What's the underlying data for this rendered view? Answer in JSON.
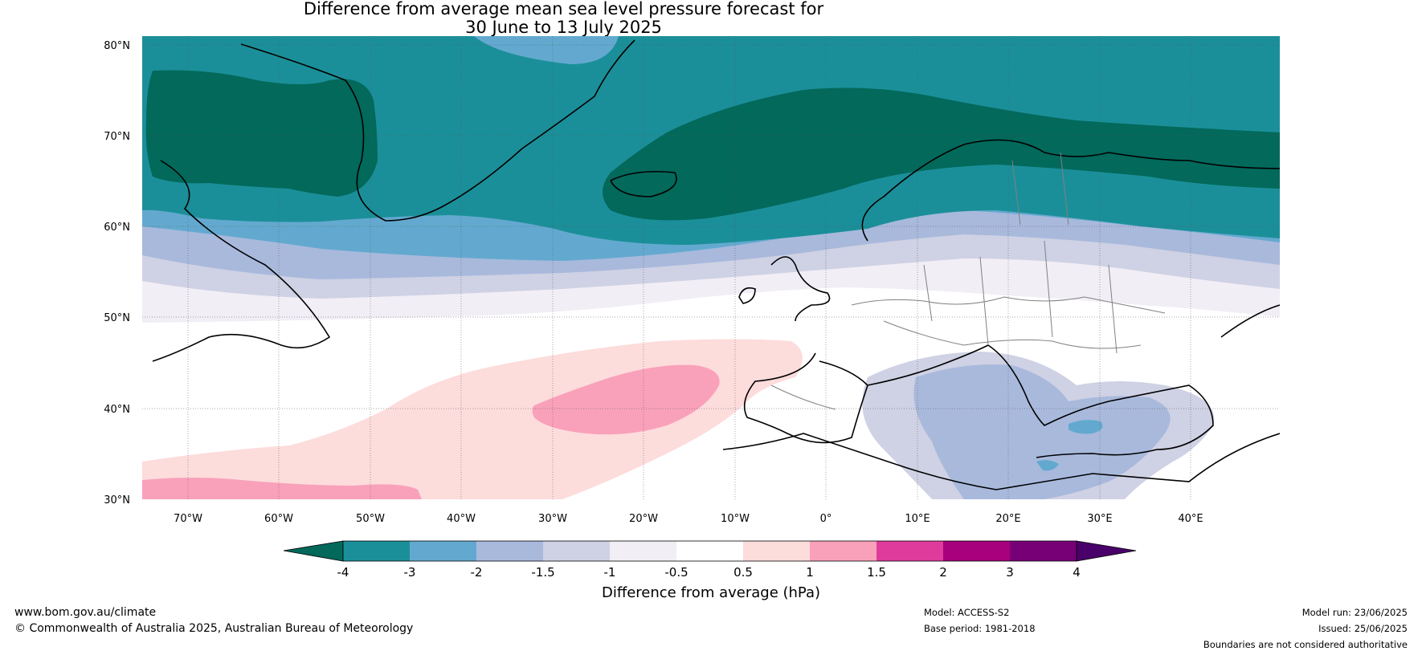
{
  "title": {
    "line1": "Difference from average mean sea level pressure forecast for",
    "line2": "30 June to 13 July 2025"
  },
  "map": {
    "lat_labels": [
      "80°N",
      "70°N",
      "60°N",
      "50°N",
      "40°N",
      "30°N"
    ],
    "lon_labels": [
      "70°W",
      "60°W",
      "50°W",
      "40°W",
      "30°W",
      "20°W",
      "10°W",
      "0°",
      "10°E",
      "20°E",
      "30°E",
      "40°E"
    ]
  },
  "colorbar": {
    "label": "Difference from average (hPa)",
    "tick_labels": [
      "-4",
      "-3",
      "-2",
      "-1.5",
      "-1",
      "-0.5",
      "0.5",
      "1",
      "1.5",
      "2",
      "3",
      "4"
    ],
    "colors": [
      "#02695b",
      "#1b8f99",
      "#63a9cf",
      "#a8b9dc",
      "#cfd1e4",
      "#f2eef6",
      "#ffffff",
      "#fddcdc",
      "#f9a1ba",
      "#df3b9c",
      "#a7017d",
      "#780077",
      "#4a006a"
    ]
  },
  "footer": {
    "website": "www.bom.gov.au/climate",
    "copyright": "© Commonwealth of Australia 2025, Australian Bureau of Meteorology",
    "model": "Model: ACCESS-S2",
    "base_period": "Base period: 1981-2018",
    "model_run": "Model run: 23/06/2025",
    "issued": "Issued: 25/06/2025",
    "disclaimer": "Boundaries are not considered authoritative"
  }
}
